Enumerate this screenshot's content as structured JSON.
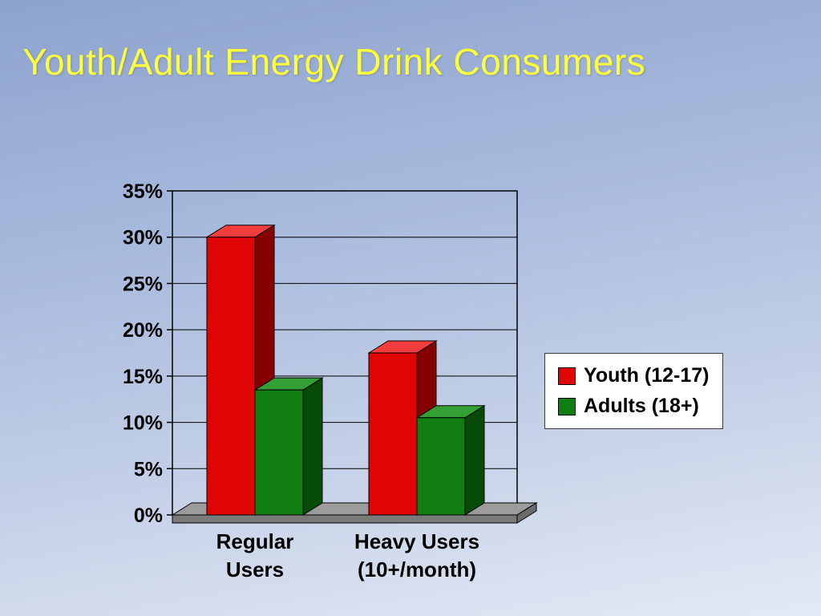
{
  "slide": {
    "title": "Youth/Adult Energy Drink Consumers"
  },
  "chart_data": {
    "type": "bar",
    "variant": "3d-grouped-column",
    "title": "",
    "categories": [
      "Regular Users",
      "Heavy Users (10+/month)"
    ],
    "category_labels": [
      {
        "line1": "Regular",
        "line2": "Users"
      },
      {
        "line1": "Heavy Users",
        "line2": "(10+/month)"
      }
    ],
    "series": [
      {
        "name": "Youth (12-17)",
        "color": "#e00505",
        "color_top": "#f23d3d",
        "color_side": "#860000",
        "values": [
          30,
          17.5
        ]
      },
      {
        "name": "Adults (18+)",
        "color": "#117e11",
        "color_top": "#34a034",
        "color_side": "#064b06",
        "values": [
          13.5,
          10.5
        ]
      }
    ],
    "ylim": [
      0,
      35
    ],
    "ytick_step": 5,
    "ytick_labels": [
      "0%",
      "5%",
      "10%",
      "15%",
      "20%",
      "25%",
      "30%",
      "35%"
    ],
    "grid": true,
    "legend_position": "right",
    "floor_color": "#9c9c9c",
    "floor_front_color": "#7a7a7a",
    "floor_side_color": "#6b6b6b"
  }
}
